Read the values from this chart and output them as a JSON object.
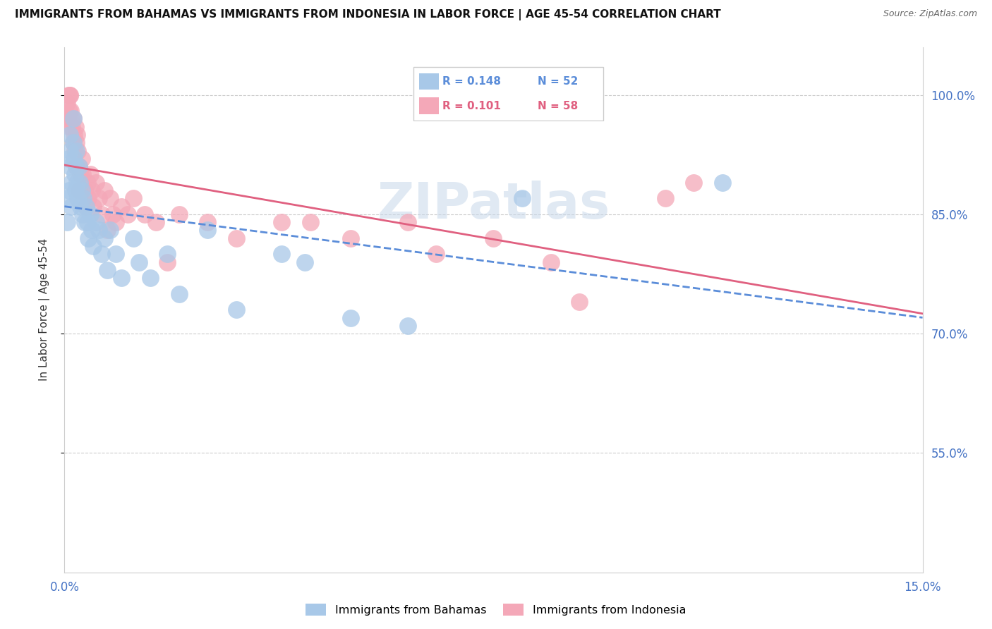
{
  "title": "IMMIGRANTS FROM BAHAMAS VS IMMIGRANTS FROM INDONESIA IN LABOR FORCE | AGE 45-54 CORRELATION CHART",
  "source": "Source: ZipAtlas.com",
  "ylabel": "In Labor Force | Age 45-54",
  "xlim": [
    0.0,
    0.15
  ],
  "ylim": [
    0.4,
    1.06
  ],
  "watermark": "ZIPatlas",
  "legend_blue_R": "R = 0.148",
  "legend_blue_N": "N = 52",
  "legend_pink_R": "R = 0.101",
  "legend_pink_N": "N = 58",
  "blue_color": "#a8c8e8",
  "pink_color": "#f4a8b8",
  "blue_line_color": "#5b8dd9",
  "pink_line_color": "#e06080",
  "blue_label": "Immigrants from Bahamas",
  "pink_label": "Immigrants from Indonesia",
  "ytick_vals": [
    0.55,
    0.7,
    0.85,
    1.0
  ],
  "ytick_labels": [
    "55.0%",
    "70.0%",
    "85.0%",
    "100.0%"
  ],
  "bahamas_x": [
    0.0005,
    0.0006,
    0.0007,
    0.0008,
    0.001,
    0.001,
    0.001,
    0.0012,
    0.0012,
    0.0015,
    0.0015,
    0.0017,
    0.0018,
    0.0019,
    0.002,
    0.0021,
    0.0022,
    0.0023,
    0.0025,
    0.0027,
    0.0028,
    0.003,
    0.0032,
    0.0033,
    0.0035,
    0.0038,
    0.004,
    0.0042,
    0.0045,
    0.0048,
    0.005,
    0.0055,
    0.006,
    0.0065,
    0.007,
    0.0075,
    0.008,
    0.009,
    0.01,
    0.012,
    0.013,
    0.015,
    0.018,
    0.02,
    0.025,
    0.03,
    0.038,
    0.042,
    0.05,
    0.06,
    0.08,
    0.115
  ],
  "bahamas_y": [
    0.84,
    0.87,
    0.92,
    0.88,
    0.95,
    0.93,
    0.91,
    0.89,
    0.86,
    0.97,
    0.94,
    0.92,
    0.9,
    0.88,
    0.93,
    0.91,
    0.89,
    0.87,
    0.91,
    0.89,
    0.86,
    0.88,
    0.85,
    0.87,
    0.84,
    0.86,
    0.84,
    0.82,
    0.85,
    0.83,
    0.81,
    0.84,
    0.83,
    0.8,
    0.82,
    0.78,
    0.83,
    0.8,
    0.77,
    0.82,
    0.79,
    0.77,
    0.8,
    0.75,
    0.83,
    0.73,
    0.8,
    0.79,
    0.72,
    0.71,
    0.87,
    0.89
  ],
  "indonesia_x": [
    0.0005,
    0.0006,
    0.0007,
    0.0008,
    0.0009,
    0.001,
    0.001,
    0.0011,
    0.0012,
    0.0013,
    0.0015,
    0.0016,
    0.0017,
    0.0018,
    0.0019,
    0.002,
    0.0021,
    0.0022,
    0.0023,
    0.0025,
    0.0026,
    0.0028,
    0.003,
    0.0032,
    0.0035,
    0.0038,
    0.004,
    0.0042,
    0.0045,
    0.0048,
    0.005,
    0.0055,
    0.006,
    0.0065,
    0.007,
    0.0075,
    0.008,
    0.0085,
    0.009,
    0.01,
    0.011,
    0.012,
    0.014,
    0.016,
    0.018,
    0.02,
    0.025,
    0.03,
    0.038,
    0.043,
    0.05,
    0.06,
    0.065,
    0.075,
    0.085,
    0.09,
    0.105,
    0.11
  ],
  "indonesia_y": [
    0.99,
    0.97,
    1.0,
    0.98,
    0.96,
    1.0,
    1.0,
    0.98,
    0.97,
    0.96,
    0.94,
    0.97,
    0.95,
    0.93,
    0.96,
    0.94,
    0.91,
    0.95,
    0.93,
    0.91,
    0.88,
    0.9,
    0.92,
    0.9,
    0.88,
    0.86,
    0.89,
    0.87,
    0.9,
    0.88,
    0.86,
    0.89,
    0.87,
    0.85,
    0.88,
    0.83,
    0.87,
    0.85,
    0.84,
    0.86,
    0.85,
    0.87,
    0.85,
    0.84,
    0.79,
    0.85,
    0.84,
    0.82,
    0.84,
    0.84,
    0.82,
    0.84,
    0.8,
    0.82,
    0.79,
    0.74,
    0.87,
    0.89
  ]
}
